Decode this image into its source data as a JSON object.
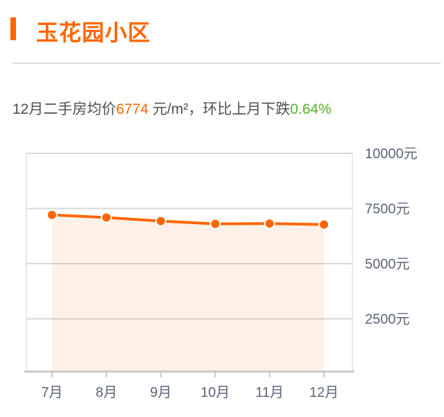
{
  "header": {
    "title": "玉花园小区",
    "accent_color": "#ff6600"
  },
  "subtitle": {
    "prefix": "12月二手房均价",
    "price": "6774",
    "middle": " 元/m²，环比上月下跌",
    "change": "0.64%",
    "text_color": "#4f4f4f",
    "price_color": "#ff6600",
    "change_color": "#55b227"
  },
  "chart_data": {
    "type": "line",
    "title": "",
    "categories": [
      "7月",
      "8月",
      "9月",
      "10月",
      "11月",
      "12月"
    ],
    "values": [
      7210,
      7090,
      6930,
      6805,
      6818,
      6774
    ],
    "series_name": "二手房均价",
    "unit": "元",
    "xlabel": "",
    "ylabel": "",
    "ylim": [
      0,
      10000
    ],
    "y_ticks": [
      2500,
      5000,
      7500,
      10000
    ],
    "y_tick_labels": [
      "2500元",
      "5000元",
      "7500元",
      "10000元"
    ],
    "y_axis_side": "right",
    "grid": true,
    "legend_position": "none",
    "line_color": "#ff6600",
    "point_fill": "#ff6600",
    "point_stroke": "#ffffff",
    "area_fill": "rgba(255,102,0,0.09)",
    "grid_color": "#d9d9d9",
    "border_color": "#e2e2e2",
    "axis_color": "#c9c9c9",
    "tick_label_color": "#5a6577"
  }
}
